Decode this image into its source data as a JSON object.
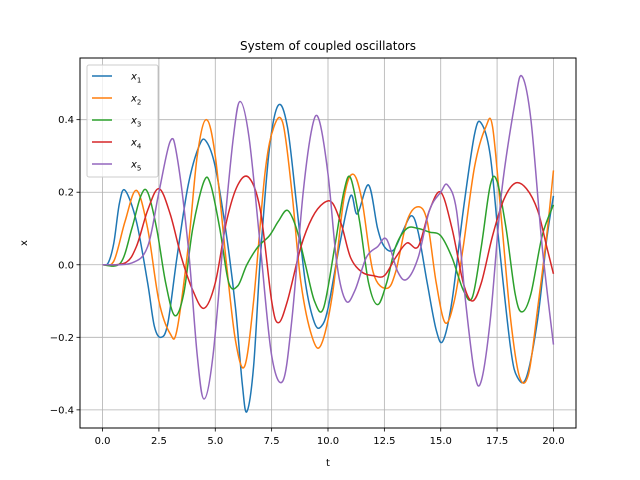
{
  "chart_data": {
    "type": "line",
    "title": "System of coupled oscillators",
    "xlabel": "t",
    "ylabel": "x",
    "xlim": [
      -1.0,
      21.0
    ],
    "ylim": [
      -0.45,
      0.57
    ],
    "xticks": [
      0.0,
      2.5,
      5.0,
      7.5,
      10.0,
      12.5,
      15.0,
      17.5,
      20.0
    ],
    "xtick_labels": [
      "0.0",
      "2.5",
      "5.0",
      "7.5",
      "10.0",
      "12.5",
      "15.0",
      "17.5",
      "20.0"
    ],
    "yticks": [
      -0.4,
      -0.2,
      0.0,
      0.2,
      0.4
    ],
    "ytick_labels": [
      "−0.4",
      "−0.2",
      "0.0",
      "0.2",
      "0.4"
    ],
    "grid": true,
    "legend_position": "top-left",
    "series": [
      {
        "name": "x1",
        "label_base": "x",
        "label_sub": "1",
        "color": "#1f77b4",
        "points": [
          [
            0,
            0
          ],
          [
            0.25,
            0.005
          ],
          [
            0.5,
            0.06
          ],
          [
            0.75,
            0.17
          ],
          [
            1.0,
            0.205
          ],
          [
            1.5,
            0.12
          ],
          [
            2.0,
            -0.05
          ],
          [
            2.3,
            -0.17
          ],
          [
            2.6,
            -0.2
          ],
          [
            2.9,
            -0.16
          ],
          [
            3.3,
            0.02
          ],
          [
            3.8,
            0.22
          ],
          [
            4.3,
            0.33
          ],
          [
            4.6,
            0.34
          ],
          [
            5.0,
            0.27
          ],
          [
            5.5,
            0.08
          ],
          [
            5.9,
            -0.12
          ],
          [
            6.2,
            -0.33
          ],
          [
            6.4,
            -0.405
          ],
          [
            6.7,
            -0.28
          ],
          [
            7.0,
            0.02
          ],
          [
            7.4,
            0.32
          ],
          [
            7.8,
            0.44
          ],
          [
            8.2,
            0.38
          ],
          [
            8.6,
            0.17
          ],
          [
            9.0,
            -0.05
          ],
          [
            9.4,
            -0.16
          ],
          [
            9.7,
            -0.17
          ],
          [
            10.0,
            -0.12
          ],
          [
            10.5,
            0.05
          ],
          [
            11.0,
            0.19
          ],
          [
            11.3,
            0.14
          ],
          [
            11.8,
            0.22
          ],
          [
            12.2,
            0.1
          ],
          [
            12.5,
            0.05
          ],
          [
            12.9,
            0.04
          ],
          [
            13.3,
            0.09
          ],
          [
            13.7,
            0.135
          ],
          [
            14.0,
            0.09
          ],
          [
            14.4,
            -0.05
          ],
          [
            14.8,
            -0.18
          ],
          [
            15.1,
            -0.21
          ],
          [
            15.5,
            -0.1
          ],
          [
            16.0,
            0.15
          ],
          [
            16.5,
            0.36
          ],
          [
            16.8,
            0.39
          ],
          [
            17.2,
            0.3
          ],
          [
            17.6,
            0.05
          ],
          [
            18.1,
            -0.23
          ],
          [
            18.4,
            -0.31
          ],
          [
            18.8,
            -0.31
          ],
          [
            19.3,
            -0.15
          ],
          [
            19.7,
            0.07
          ],
          [
            20.0,
            0.19
          ]
        ]
      },
      {
        "name": "x2",
        "label_base": "x",
        "label_sub": "2",
        "color": "#ff7f0e",
        "points": [
          [
            0,
            0
          ],
          [
            0.5,
            0.01
          ],
          [
            1.0,
            0.12
          ],
          [
            1.5,
            0.205
          ],
          [
            2.0,
            0.1
          ],
          [
            2.5,
            -0.1
          ],
          [
            3.0,
            -0.19
          ],
          [
            3.3,
            -0.18
          ],
          [
            3.8,
            0.05
          ],
          [
            4.2,
            0.3
          ],
          [
            4.6,
            0.4
          ],
          [
            5.0,
            0.3
          ],
          [
            5.5,
            0.0
          ],
          [
            5.9,
            -0.21
          ],
          [
            6.3,
            -0.28
          ],
          [
            6.7,
            -0.1
          ],
          [
            7.2,
            0.25
          ],
          [
            7.6,
            0.38
          ],
          [
            8.0,
            0.39
          ],
          [
            8.4,
            0.2
          ],
          [
            8.8,
            -0.05
          ],
          [
            9.3,
            -0.2
          ],
          [
            9.7,
            -0.22
          ],
          [
            10.2,
            -0.08
          ],
          [
            10.7,
            0.18
          ],
          [
            11.1,
            0.25
          ],
          [
            11.5,
            0.18
          ],
          [
            12.0,
            -0.02
          ],
          [
            12.6,
            -0.065
          ],
          [
            13.0,
            -0.02
          ],
          [
            13.5,
            0.12
          ],
          [
            14.0,
            0.16
          ],
          [
            14.4,
            0.12
          ],
          [
            14.8,
            -0.05
          ],
          [
            15.2,
            -0.16
          ],
          [
            15.6,
            -0.1
          ],
          [
            16.0,
            0.05
          ],
          [
            16.5,
            0.27
          ],
          [
            17.0,
            0.38
          ],
          [
            17.3,
            0.38
          ],
          [
            17.7,
            0.12
          ],
          [
            18.1,
            -0.15
          ],
          [
            18.5,
            -0.31
          ],
          [
            18.9,
            -0.3
          ],
          [
            19.3,
            -0.12
          ],
          [
            19.7,
            0.08
          ],
          [
            20.0,
            0.26
          ]
        ]
      },
      {
        "name": "x3",
        "label_base": "x",
        "label_sub": "3",
        "color": "#2ca02c",
        "points": [
          [
            0,
            0
          ],
          [
            0.8,
            0.005
          ],
          [
            1.3,
            0.1
          ],
          [
            1.7,
            0.19
          ],
          [
            2.0,
            0.2
          ],
          [
            2.4,
            0.1
          ],
          [
            2.8,
            -0.05
          ],
          [
            3.2,
            -0.14
          ],
          [
            3.6,
            -0.08
          ],
          [
            4.0,
            0.1
          ],
          [
            4.5,
            0.23
          ],
          [
            4.8,
            0.22
          ],
          [
            5.2,
            0.1
          ],
          [
            5.6,
            -0.05
          ],
          [
            6.0,
            -0.058
          ],
          [
            6.4,
            0.0
          ],
          [
            6.9,
            0.05
          ],
          [
            7.4,
            0.08
          ],
          [
            7.8,
            0.12
          ],
          [
            8.2,
            0.15
          ],
          [
            8.6,
            0.1
          ],
          [
            9.0,
            0.0
          ],
          [
            9.4,
            -0.1
          ],
          [
            9.8,
            -0.12
          ],
          [
            10.3,
            0.05
          ],
          [
            10.7,
            0.2
          ],
          [
            11.0,
            0.24
          ],
          [
            11.4,
            0.12
          ],
          [
            11.8,
            -0.05
          ],
          [
            12.2,
            -0.11
          ],
          [
            12.6,
            -0.05
          ],
          [
            13.0,
            0.05
          ],
          [
            13.5,
            0.1
          ],
          [
            14.0,
            0.1
          ],
          [
            14.5,
            0.09
          ],
          [
            15.0,
            0.08
          ],
          [
            15.5,
            0.02
          ],
          [
            16.0,
            -0.07
          ],
          [
            16.4,
            -0.09
          ],
          [
            16.8,
            0.05
          ],
          [
            17.2,
            0.22
          ],
          [
            17.5,
            0.23
          ],
          [
            17.9,
            0.1
          ],
          [
            18.3,
            -0.08
          ],
          [
            18.6,
            -0.13
          ],
          [
            19.0,
            -0.08
          ],
          [
            19.5,
            0.08
          ],
          [
            20.0,
            0.165
          ]
        ]
      },
      {
        "name": "x4",
        "label_base": "x",
        "label_sub": "4",
        "color": "#d62728",
        "points": [
          [
            0,
            0
          ],
          [
            1.0,
            0.005
          ],
          [
            1.5,
            0.05
          ],
          [
            2.0,
            0.15
          ],
          [
            2.5,
            0.21
          ],
          [
            3.0,
            0.14
          ],
          [
            3.5,
            0.02
          ],
          [
            4.0,
            -0.07
          ],
          [
            4.5,
            -0.12
          ],
          [
            5.0,
            -0.05
          ],
          [
            5.5,
            0.12
          ],
          [
            6.0,
            0.22
          ],
          [
            6.5,
            0.24
          ],
          [
            7.0,
            0.15
          ],
          [
            7.5,
            -0.1
          ],
          [
            7.8,
            -0.16
          ],
          [
            8.2,
            -0.1
          ],
          [
            8.8,
            0.05
          ],
          [
            9.3,
            0.13
          ],
          [
            9.8,
            0.17
          ],
          [
            10.2,
            0.17
          ],
          [
            10.6,
            0.11
          ],
          [
            11.0,
            0.02
          ],
          [
            11.5,
            -0.02
          ],
          [
            12.0,
            -0.03
          ],
          [
            12.5,
            -0.03
          ],
          [
            13.0,
            0.02
          ],
          [
            13.5,
            0.06
          ],
          [
            14.0,
            0.05
          ],
          [
            14.5,
            0.15
          ],
          [
            15.0,
            0.2
          ],
          [
            15.5,
            0.1
          ],
          [
            16.0,
            -0.05
          ],
          [
            16.4,
            -0.1
          ],
          [
            16.8,
            -0.05
          ],
          [
            17.3,
            0.08
          ],
          [
            17.8,
            0.18
          ],
          [
            18.3,
            0.225
          ],
          [
            18.8,
            0.21
          ],
          [
            19.3,
            0.15
          ],
          [
            19.7,
            0.05
          ],
          [
            20.0,
            -0.025
          ]
        ]
      },
      {
        "name": "x5",
        "label_base": "x",
        "label_sub": "5",
        "color": "#9467bd",
        "points": [
          [
            0,
            0
          ],
          [
            1.3,
            0.005
          ],
          [
            2.0,
            0.05
          ],
          [
            2.5,
            0.2
          ],
          [
            3.0,
            0.34
          ],
          [
            3.3,
            0.3
          ],
          [
            3.8,
            0.05
          ],
          [
            4.2,
            -0.25
          ],
          [
            4.5,
            -0.37
          ],
          [
            4.9,
            -0.25
          ],
          [
            5.4,
            0.1
          ],
          [
            5.8,
            0.35
          ],
          [
            6.1,
            0.45
          ],
          [
            6.5,
            0.35
          ],
          [
            7.0,
            0.05
          ],
          [
            7.5,
            -0.25
          ],
          [
            8.0,
            -0.32
          ],
          [
            8.4,
            -0.15
          ],
          [
            8.9,
            0.2
          ],
          [
            9.3,
            0.38
          ],
          [
            9.6,
            0.4
          ],
          [
            10.0,
            0.25
          ],
          [
            10.4,
            0.0
          ],
          [
            10.8,
            -0.1
          ],
          [
            11.2,
            -0.07
          ],
          [
            11.7,
            0.02
          ],
          [
            12.2,
            0.05
          ],
          [
            12.6,
            0.07
          ],
          [
            13.1,
            -0.02
          ],
          [
            13.5,
            -0.04
          ],
          [
            14.0,
            0.02
          ],
          [
            14.5,
            0.15
          ],
          [
            15.0,
            0.2
          ],
          [
            15.3,
            0.22
          ],
          [
            15.7,
            0.15
          ],
          [
            16.1,
            -0.1
          ],
          [
            16.5,
            -0.3
          ],
          [
            16.8,
            -0.32
          ],
          [
            17.2,
            -0.15
          ],
          [
            17.7,
            0.2
          ],
          [
            18.3,
            0.45
          ],
          [
            18.6,
            0.52
          ],
          [
            19.0,
            0.4
          ],
          [
            19.5,
            0.05
          ],
          [
            20.0,
            -0.22
          ]
        ]
      }
    ]
  }
}
